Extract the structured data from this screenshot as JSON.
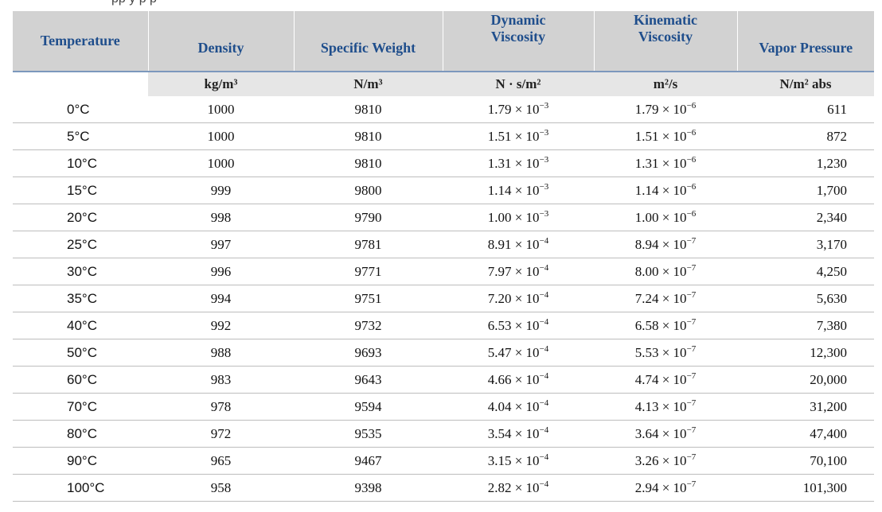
{
  "caption_fragment": "pp                y              p                                          p              ",
  "columns": [
    {
      "header": "Temperature",
      "unit": ""
    },
    {
      "header": "Density",
      "unit": "kg/m³"
    },
    {
      "header": "Specific Weight",
      "unit": "N/m³"
    },
    {
      "header": "Dynamic Viscosity",
      "unit": "N · s/m²"
    },
    {
      "header": "Kinematic Viscosity",
      "unit": "m²/s"
    },
    {
      "header": "Vapor Pressure",
      "unit": "N/m² abs"
    }
  ],
  "header_lines": {
    "dynamic": [
      "Dynamic",
      "Viscosity"
    ],
    "kinematic": [
      "Kinematic",
      "Viscosity"
    ]
  },
  "rows": [
    {
      "temp": "0°C",
      "density": "1000",
      "weight": "9810",
      "dyn": [
        "1.79",
        "−3"
      ],
      "kin": [
        "1.79",
        "−6"
      ],
      "vapor": "611"
    },
    {
      "temp": "5°C",
      "density": "1000",
      "weight": "9810",
      "dyn": [
        "1.51",
        "−3"
      ],
      "kin": [
        "1.51",
        "−6"
      ],
      "vapor": "872"
    },
    {
      "temp": "10°C",
      "density": "1000",
      "weight": "9810",
      "dyn": [
        "1.31",
        "−3"
      ],
      "kin": [
        "1.31",
        "−6"
      ],
      "vapor": "1,230"
    },
    {
      "temp": "15°C",
      "density": "999",
      "weight": "9800",
      "dyn": [
        "1.14",
        "−3"
      ],
      "kin": [
        "1.14",
        "−6"
      ],
      "vapor": "1,700"
    },
    {
      "temp": "20°C",
      "density": "998",
      "weight": "9790",
      "dyn": [
        "1.00",
        "−3"
      ],
      "kin": [
        "1.00",
        "−6"
      ],
      "vapor": "2,340"
    },
    {
      "temp": "25°C",
      "density": "997",
      "weight": "9781",
      "dyn": [
        "8.91",
        "−4"
      ],
      "kin": [
        "8.94",
        "−7"
      ],
      "vapor": "3,170"
    },
    {
      "temp": "30°C",
      "density": "996",
      "weight": "9771",
      "dyn": [
        "7.97",
        "−4"
      ],
      "kin": [
        "8.00",
        "−7"
      ],
      "vapor": "4,250"
    },
    {
      "temp": "35°C",
      "density": "994",
      "weight": "9751",
      "dyn": [
        "7.20",
        "−4"
      ],
      "kin": [
        "7.24",
        "−7"
      ],
      "vapor": "5,630"
    },
    {
      "temp": "40°C",
      "density": "992",
      "weight": "9732",
      "dyn": [
        "6.53",
        "−4"
      ],
      "kin": [
        "6.58",
        "−7"
      ],
      "vapor": "7,380"
    },
    {
      "temp": "50°C",
      "density": "988",
      "weight": "9693",
      "dyn": [
        "5.47",
        "−4"
      ],
      "kin": [
        "5.53",
        "−7"
      ],
      "vapor": "12,300"
    },
    {
      "temp": "60°C",
      "density": "983",
      "weight": "9643",
      "dyn": [
        "4.66",
        "−4"
      ],
      "kin": [
        "4.74",
        "−7"
      ],
      "vapor": "20,000"
    },
    {
      "temp": "70°C",
      "density": "978",
      "weight": "9594",
      "dyn": [
        "4.04",
        "−4"
      ],
      "kin": [
        "4.13",
        "−7"
      ],
      "vapor": "31,200"
    },
    {
      "temp": "80°C",
      "density": "972",
      "weight": "9535",
      "dyn": [
        "3.54",
        "−4"
      ],
      "kin": [
        "3.64",
        "−7"
      ],
      "vapor": "47,400"
    },
    {
      "temp": "90°C",
      "density": "965",
      "weight": "9467",
      "dyn": [
        "3.15",
        "−4"
      ],
      "kin": [
        "3.26",
        "−7"
      ],
      "vapor": "70,100"
    },
    {
      "temp": "100°C",
      "density": "958",
      "weight": "9398",
      "dyn": [
        "2.82",
        "−4"
      ],
      "kin": [
        "2.94",
        "−7"
      ],
      "vapor": "101,300"
    }
  ],
  "colors": {
    "header_text": "#1f4e8c",
    "header_bg": "#d2d2d2",
    "unit_bg": "#e6e6e6"
  }
}
